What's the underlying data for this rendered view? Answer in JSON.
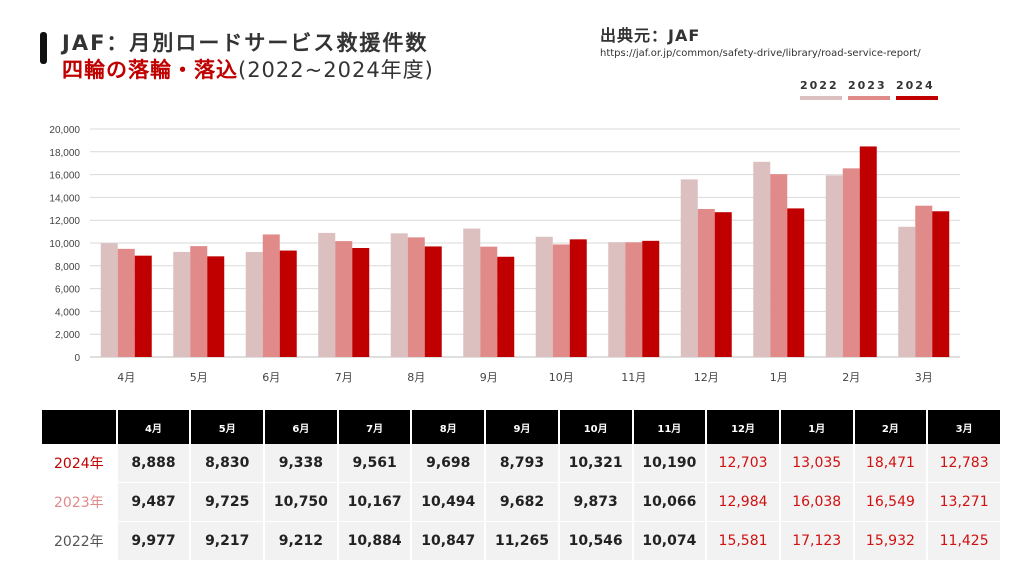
{
  "header": {
    "title_line1": "JAF：月別ロードサービス救援件数",
    "title_line2_red": "四輪の落輪・落込",
    "title_line2_years": "(2022~2024年度)"
  },
  "source": {
    "label": "出典元：JAF",
    "url": "https://jaf.or.jp/common/safety-drive/library/road-service-report/"
  },
  "colors": {
    "y2022": "#dcc0c0",
    "y2023": "#e08a8a",
    "y2024": "#c00000",
    "highlight_text": "#d11010"
  },
  "chart_data": {
    "type": "bar",
    "title": "JAF：月別ロードサービス救援件数 四輪の落輪・落込(2022~2024年度)",
    "categories": [
      "4月",
      "5月",
      "6月",
      "7月",
      "8月",
      "9月",
      "10月",
      "11月",
      "12月",
      "1月",
      "2月",
      "3月"
    ],
    "series": [
      {
        "name": "2022",
        "values": [
          9977,
          9217,
          9212,
          10884,
          10847,
          11265,
          10546,
          10074,
          15581,
          17123,
          15932,
          11425
        ]
      },
      {
        "name": "2023",
        "values": [
          9487,
          9725,
          10750,
          10167,
          10494,
          9682,
          9873,
          10066,
          12984,
          16038,
          16549,
          13271
        ]
      },
      {
        "name": "2024",
        "values": [
          8888,
          8830,
          9338,
          9561,
          9698,
          8793,
          10321,
          10190,
          12703,
          13035,
          18471,
          12783
        ]
      }
    ],
    "yticks": [
      "0",
      "2,000",
      "4,000",
      "6,000",
      "8,000",
      "10,000",
      "12,000",
      "14,000",
      "16,000",
      "18,000",
      "20,000"
    ],
    "ylim": [
      0,
      20000
    ],
    "xlabel": "",
    "ylabel": "",
    "legend": [
      "2022",
      "2023",
      "2024"
    ],
    "legend_position": "top-right",
    "grid": true
  },
  "table": {
    "headers": [
      "4月",
      "5月",
      "6月",
      "7月",
      "8月",
      "9月",
      "10月",
      "11月",
      "12月",
      "1月",
      "2月",
      "3月"
    ],
    "rows": [
      {
        "label": "2024年",
        "label_color": "#c00000",
        "values": [
          "8,888",
          "8,830",
          "9,338",
          "9,561",
          "9,698",
          "8,793",
          "10,321",
          "10,190",
          "12,703",
          "13,035",
          "18,471",
          "12,783"
        ]
      },
      {
        "label": "2023年",
        "label_color": "#e08a8a",
        "values": [
          "9,487",
          "9,725",
          "10,750",
          "10,167",
          "10,494",
          "9,682",
          "9,873",
          "10,066",
          "12,984",
          "16,038",
          "16,549",
          "13,271"
        ]
      },
      {
        "label": "2022年",
        "label_color": "#555555",
        "values": [
          "9,977",
          "9,217",
          "9,212",
          "10,884",
          "10,847",
          "11,265",
          "10,546",
          "10,074",
          "15,581",
          "17,123",
          "15,932",
          "11,425"
        ]
      }
    ],
    "highlight_from_index": 8
  }
}
